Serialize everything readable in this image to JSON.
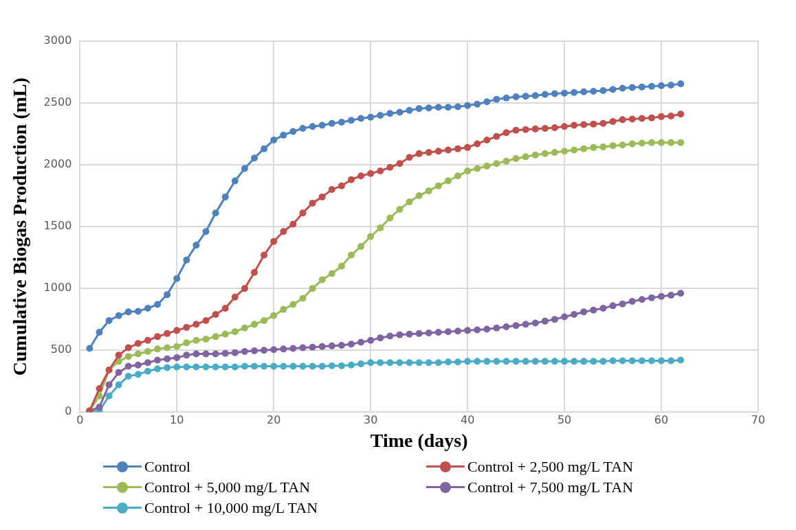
{
  "chart_data": {
    "type": "line",
    "xlabel": "Time (days)",
    "ylabel": "Cumulative Biogas Production (mL)",
    "x": [
      1,
      2,
      3,
      4,
      5,
      6,
      7,
      8,
      9,
      10,
      11,
      12,
      13,
      14,
      15,
      16,
      17,
      18,
      19,
      20,
      21,
      22,
      23,
      24,
      25,
      26,
      27,
      28,
      29,
      30,
      31,
      32,
      33,
      34,
      35,
      36,
      37,
      38,
      39,
      40,
      41,
      42,
      43,
      44,
      45,
      46,
      47,
      48,
      49,
      50,
      51,
      52,
      53,
      54,
      55,
      56,
      57,
      58,
      59,
      60,
      61,
      62
    ],
    "xlim": [
      0,
      70
    ],
    "xticks": [
      0,
      10,
      20,
      30,
      40,
      50,
      60,
      70
    ],
    "ylim": [
      0,
      3000
    ],
    "yticks": [
      0,
      500,
      1000,
      1500,
      2000,
      2500,
      3000
    ],
    "grid": true,
    "legend": "bottom",
    "marker": "circle",
    "line_style": "solid",
    "series": [
      {
        "name": "Control",
        "color": "#4f81bd",
        "values": [
          515,
          645,
          740,
          780,
          810,
          815,
          840,
          870,
          950,
          1080,
          1230,
          1350,
          1460,
          1610,
          1740,
          1870,
          1970,
          2055,
          2130,
          2200,
          2240,
          2270,
          2295,
          2310,
          2320,
          2335,
          2345,
          2360,
          2375,
          2385,
          2400,
          2415,
          2425,
          2440,
          2455,
          2460,
          2465,
          2465,
          2470,
          2480,
          2490,
          2510,
          2530,
          2540,
          2550,
          2555,
          2560,
          2570,
          2575,
          2580,
          2585,
          2590,
          2595,
          2600,
          2610,
          2620,
          2625,
          2630,
          2635,
          2640,
          2645,
          2655
        ]
      },
      {
        "name": "Control + 2,500 mg/L TAN",
        "color": "#c0504d",
        "values": [
          10,
          190,
          340,
          460,
          520,
          555,
          580,
          610,
          635,
          660,
          685,
          710,
          740,
          790,
          840,
          930,
          1000,
          1130,
          1270,
          1380,
          1460,
          1520,
          1610,
          1690,
          1740,
          1800,
          1830,
          1880,
          1910,
          1930,
          1950,
          1980,
          2010,
          2060,
          2090,
          2100,
          2110,
          2120,
          2130,
          2140,
          2170,
          2200,
          2230,
          2260,
          2280,
          2285,
          2290,
          2295,
          2300,
          2310,
          2320,
          2325,
          2330,
          2335,
          2350,
          2365,
          2370,
          2375,
          2380,
          2390,
          2395,
          2410
        ]
      },
      {
        "name": "Control + 5,000 mg/L TAN",
        "color": "#9bbb59",
        "values": [
          10,
          130,
          340,
          410,
          450,
          470,
          490,
          510,
          520,
          530,
          560,
          580,
          590,
          610,
          630,
          650,
          680,
          710,
          740,
          780,
          830,
          870,
          920,
          1000,
          1070,
          1120,
          1180,
          1270,
          1340,
          1420,
          1490,
          1570,
          1640,
          1700,
          1750,
          1790,
          1830,
          1870,
          1910,
          1950,
          1970,
          1990,
          2010,
          2030,
          2050,
          2065,
          2080,
          2090,
          2100,
          2110,
          2120,
          2130,
          2140,
          2145,
          2155,
          2160,
          2170,
          2175,
          2180,
          2180,
          2180,
          2180
        ]
      },
      {
        "name": "Control + 7,500 mg/L TAN",
        "color": "#8064a2",
        "values": [
          10,
          40,
          220,
          320,
          370,
          380,
          400,
          420,
          430,
          440,
          460,
          470,
          470,
          470,
          475,
          480,
          490,
          495,
          500,
          505,
          510,
          515,
          520,
          525,
          530,
          535,
          540,
          550,
          565,
          580,
          600,
          615,
          625,
          630,
          635,
          640,
          645,
          650,
          655,
          660,
          665,
          670,
          680,
          690,
          700,
          710,
          720,
          735,
          750,
          770,
          790,
          810,
          825,
          840,
          860,
          875,
          895,
          910,
          925,
          935,
          945,
          960
        ]
      },
      {
        "name": "Control + 10,000 mg/L TAN",
        "color": "#4bacc6",
        "values": [
          5,
          10,
          130,
          220,
          290,
          305,
          330,
          350,
          360,
          365,
          365,
          365,
          365,
          365,
          365,
          365,
          370,
          370,
          370,
          370,
          370,
          370,
          370,
          370,
          370,
          375,
          375,
          380,
          390,
          400,
          400,
          400,
          400,
          400,
          400,
          400,
          400,
          405,
          405,
          410,
          410,
          410,
          410,
          410,
          410,
          410,
          410,
          410,
          410,
          410,
          410,
          410,
          410,
          410,
          415,
          415,
          415,
          415,
          415,
          415,
          415,
          420
        ]
      }
    ]
  }
}
